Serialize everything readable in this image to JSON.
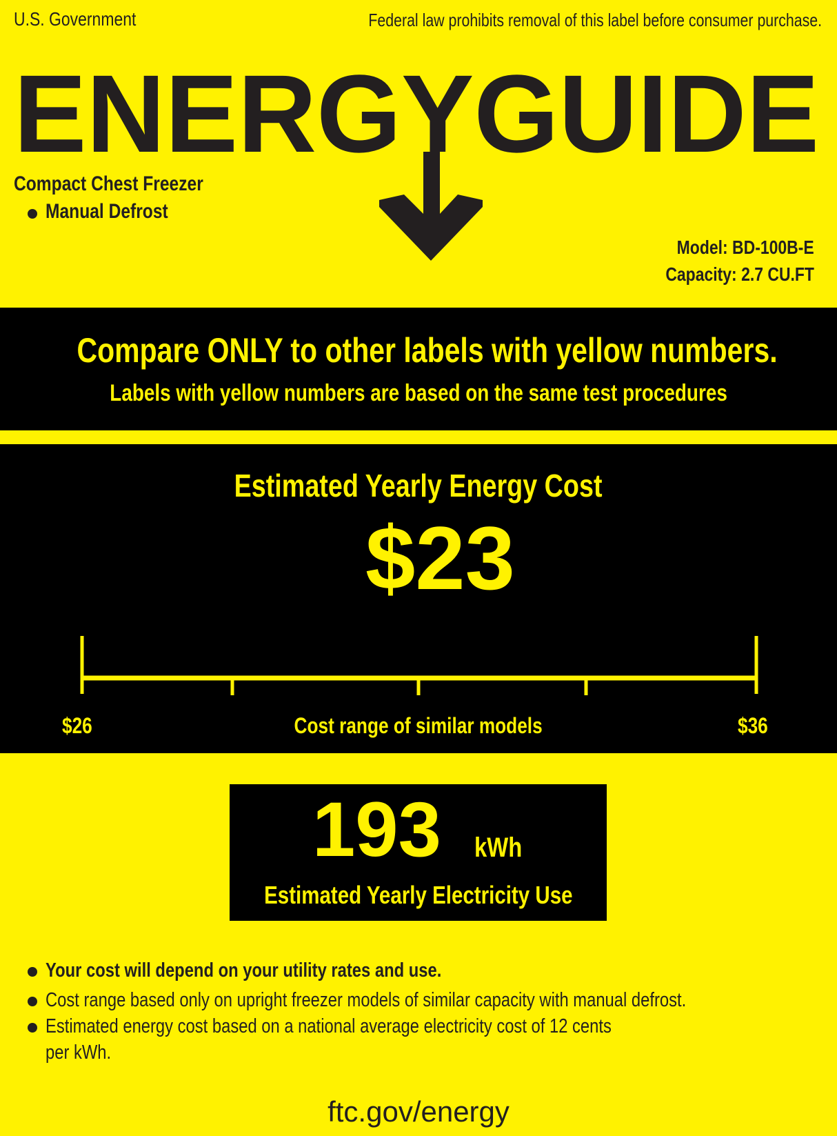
{
  "header": {
    "issuer": "U.S. Government",
    "notice": "Federal law prohibits removal of this label before consumer purchase.",
    "logo_text": "ENERGYGUIDE"
  },
  "product": {
    "type": "Compact Chest Freezer",
    "feature": "Manual Defrost",
    "model": "Model: BD-100B-E",
    "capacity": "Capacity: 2.7 CU.FT"
  },
  "compare": {
    "headline": "Compare ONLY to other labels with yellow numbers.",
    "subline": "Labels with yellow numbers are based on the same test procedures"
  },
  "cost": {
    "title": "Estimated Yearly Energy Cost",
    "value": "$23",
    "range_low": "$26",
    "range_high": "$36",
    "range_label": "Cost range of similar models"
  },
  "electricity": {
    "value": "193",
    "unit": "kWh",
    "label": "Estimated Yearly Electricity Use"
  },
  "notes": [
    "Your cost will depend on your utility rates and use.",
    "Cost range based only on upright freezer models of similar capacity with manual defrost.",
    "Estimated energy cost based on a national average electricity cost of 12 cents",
    "per kWh."
  ],
  "footer": {
    "link": "ftc.gov/energy"
  },
  "colors": {
    "label_yellow": "#fff200",
    "ink": "#231f20",
    "band": "#000000"
  }
}
